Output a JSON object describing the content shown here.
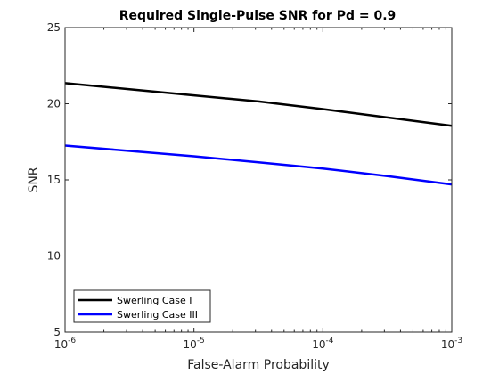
{
  "chart_data": {
    "type": "line",
    "title": "Required Single-Pulse SNR for Pd = 0.9",
    "xlabel": "False-Alarm Probability",
    "ylabel": "SNR",
    "xscale": "log",
    "xlim": [
      1e-06,
      0.001
    ],
    "ylim": [
      5,
      25
    ],
    "xticks": [
      {
        "value": 1e-06,
        "base": "10",
        "exp": "-6"
      },
      {
        "value": 1e-05,
        "base": "10",
        "exp": "-5"
      },
      {
        "value": 0.0001,
        "base": "10",
        "exp": "-4"
      },
      {
        "value": 0.001,
        "base": "10",
        "exp": "-3"
      }
    ],
    "yticks": [
      5,
      10,
      15,
      20,
      25
    ],
    "grid": false,
    "legend_position": "bottom-left",
    "series": [
      {
        "name": "Swerling Case I",
        "color": "#000000",
        "x": [
          1e-06,
          3.16e-06,
          1e-05,
          3.16e-05,
          0.0001,
          0.000316,
          0.001
        ],
        "y": [
          21.35,
          20.95,
          20.55,
          20.15,
          19.65,
          19.1,
          18.55
        ]
      },
      {
        "name": "Swerling Case III",
        "color": "#0000ff",
        "x": [
          1e-06,
          3.16e-06,
          1e-05,
          3.16e-05,
          0.0001,
          0.000316,
          0.001
        ],
        "y": [
          17.25,
          16.9,
          16.55,
          16.15,
          15.75,
          15.25,
          14.7
        ]
      }
    ]
  }
}
